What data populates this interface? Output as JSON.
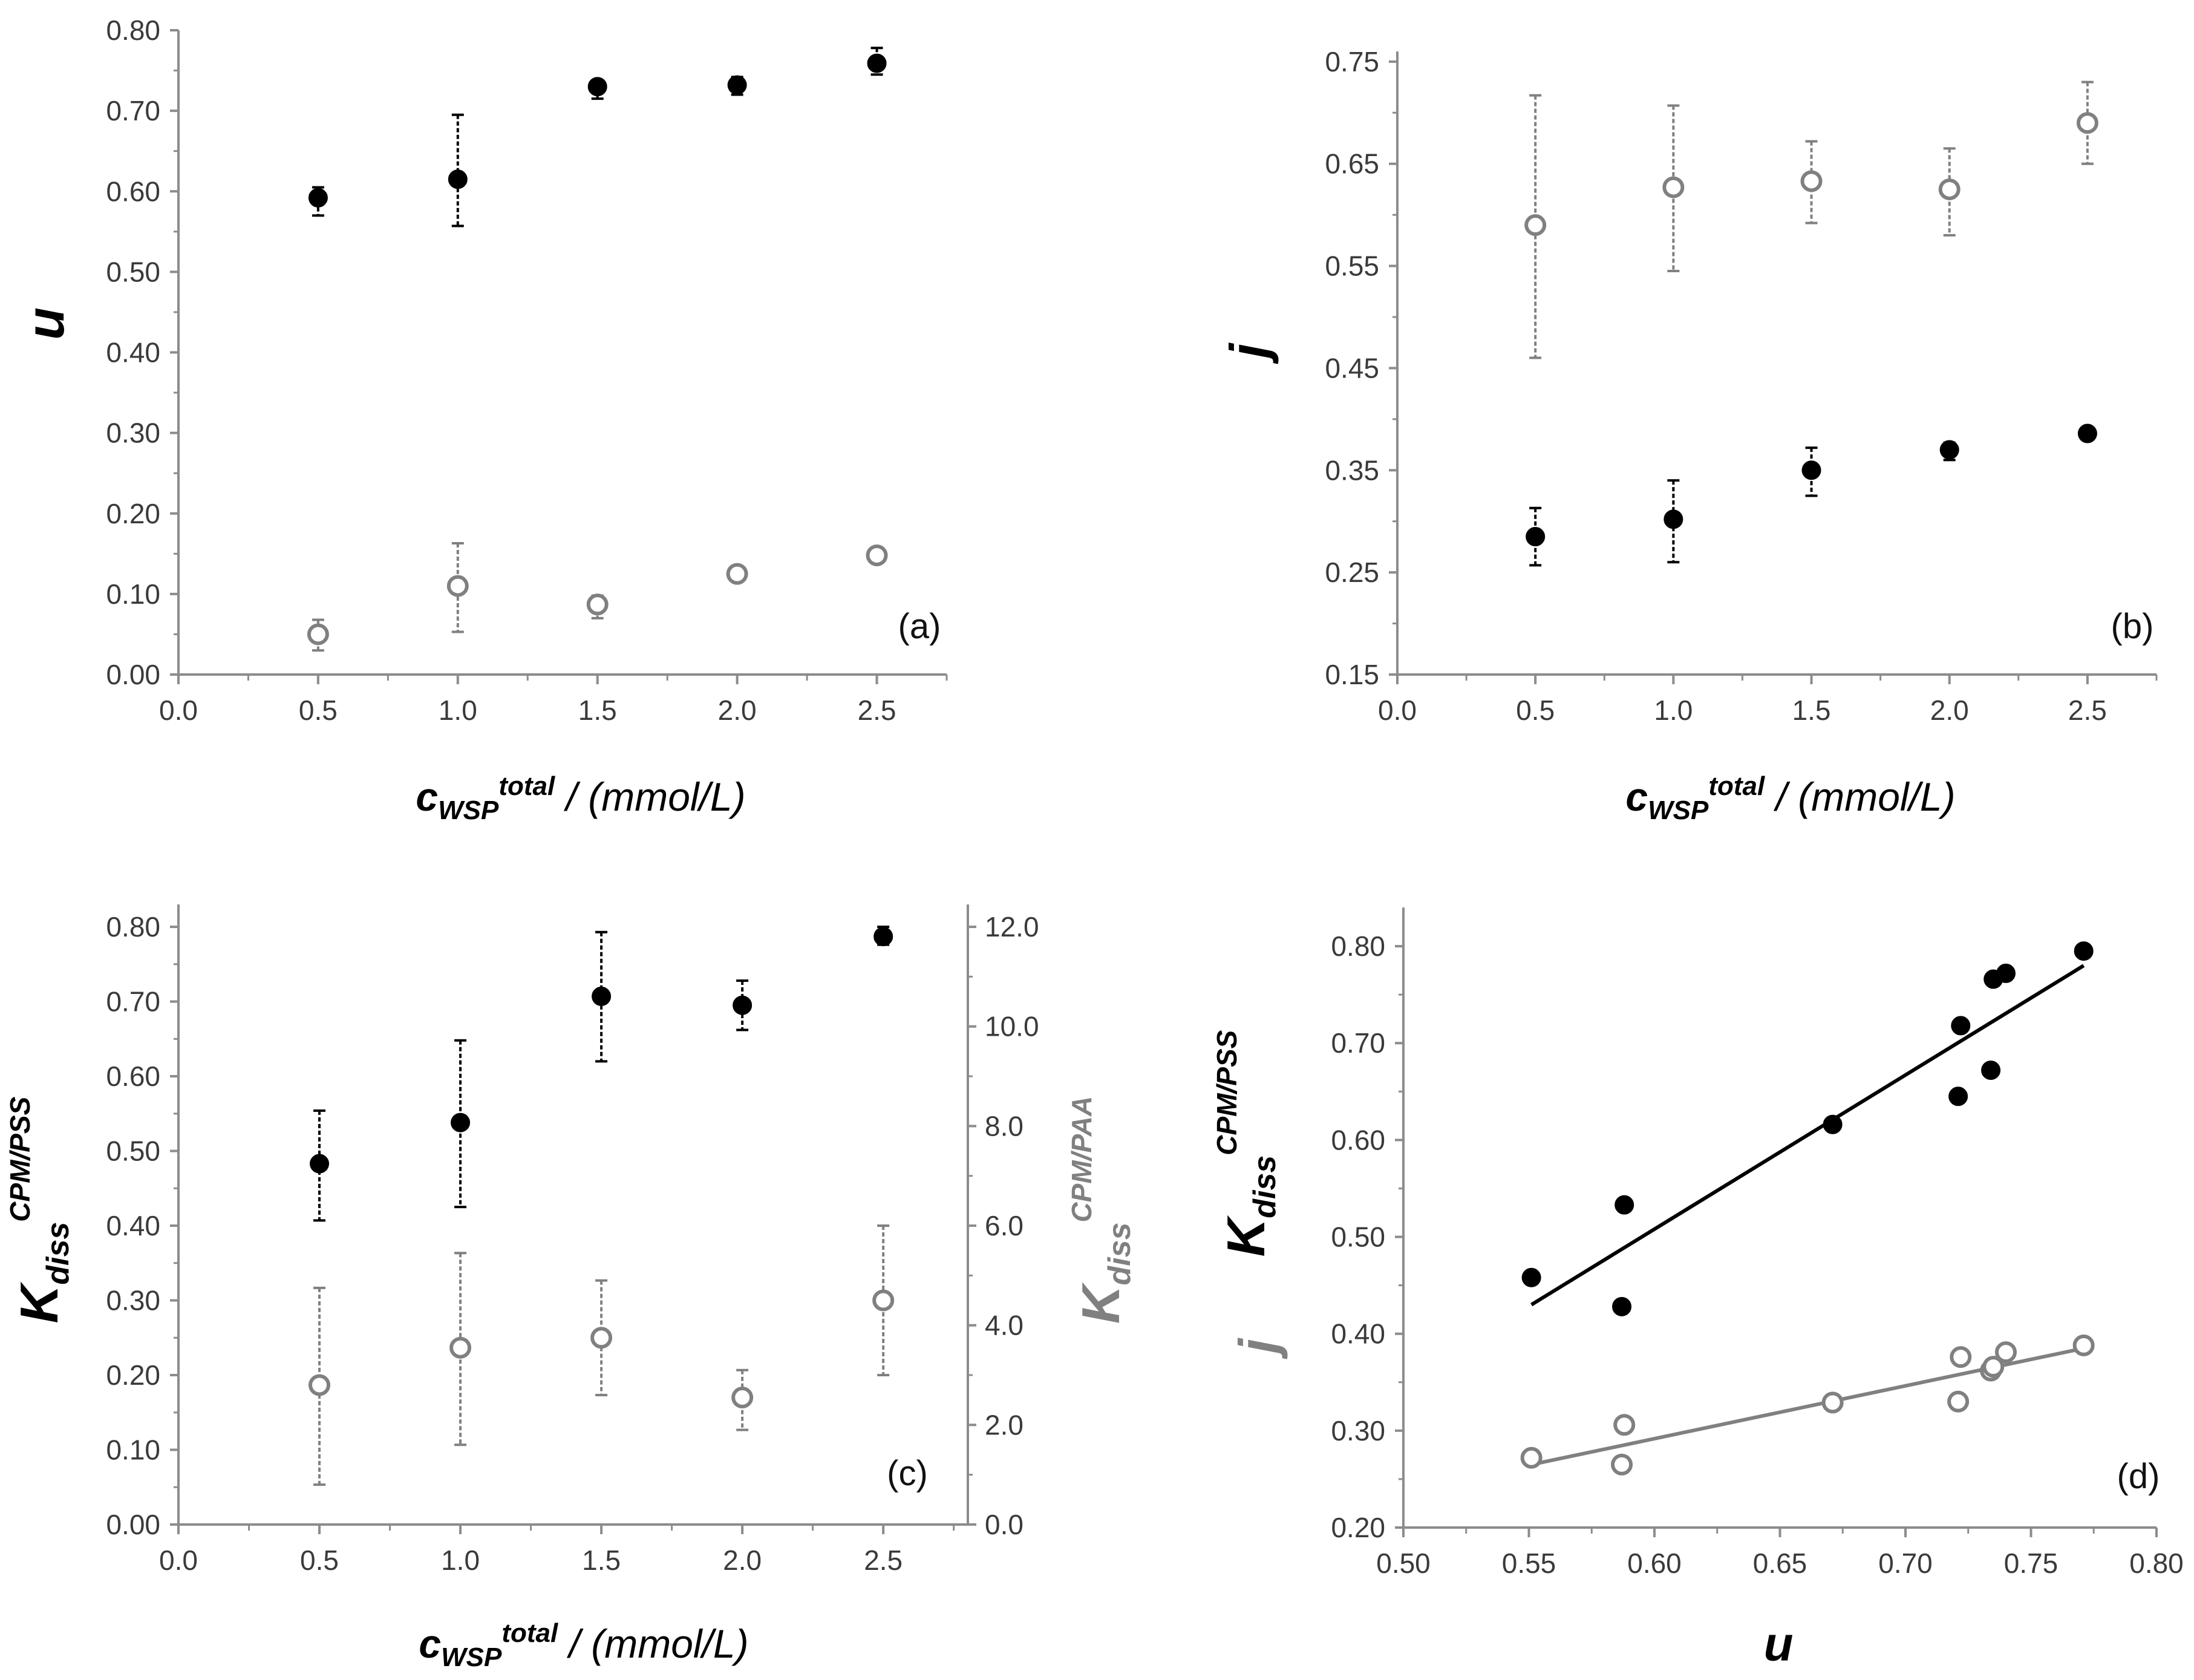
{
  "colors": {
    "black": "#000000",
    "gray": "#808080",
    "axis": "#8c8c8c"
  },
  "chart_data": [
    {
      "id": "a",
      "type": "scatter",
      "panel_label": "(a)",
      "title": "",
      "xlabel": {
        "main": "c",
        "sub": "WSP",
        "sup": "total",
        "unit": " / (mmol/L)"
      },
      "ylabel": {
        "main": "u"
      },
      "xlim": [
        0.0,
        2.75
      ],
      "ylim": [
        0.0,
        0.8
      ],
      "xticks": [
        "0.0",
        "0.5",
        "1.0",
        "1.5",
        "2.0",
        "2.5"
      ],
      "yticks": [
        "0.00",
        "0.10",
        "0.20",
        "0.30",
        "0.40",
        "0.50",
        "0.60",
        "0.70",
        "0.80"
      ],
      "series": [
        {
          "name": "filled",
          "marker": "filled",
          "color": "#000000",
          "x": [
            0.5,
            1.0,
            1.5,
            2.0,
            2.5
          ],
          "y": [
            0.592,
            0.615,
            0.73,
            0.732,
            0.759
          ],
          "err_low": [
            0.57,
            0.557,
            0.715,
            0.72,
            0.745
          ],
          "err_high": [
            0.605,
            0.695,
            0.738,
            0.742,
            0.778
          ]
        },
        {
          "name": "open",
          "marker": "open",
          "color": "#808080",
          "x": [
            0.5,
            1.0,
            1.5,
            2.0,
            2.5
          ],
          "y": [
            0.05,
            0.11,
            0.087,
            0.125,
            0.148
          ],
          "err_low": [
            0.03,
            0.053,
            0.07,
            0.118,
            0.14
          ],
          "err_high": [
            0.068,
            0.163,
            0.098,
            0.13,
            0.153
          ]
        }
      ]
    },
    {
      "id": "b",
      "type": "scatter",
      "panel_label": "(b)",
      "title": "",
      "xlabel": {
        "main": "c",
        "sub": "WSP",
        "sup": "total",
        "unit": " / (mmol/L)"
      },
      "ylabel": {
        "main": "j"
      },
      "xlim": [
        0.0,
        2.75
      ],
      "ylim": [
        0.15,
        0.76
      ],
      "xticks": [
        "0.0",
        "0.5",
        "1.0",
        "1.5",
        "2.0",
        "2.5"
      ],
      "yticks": [
        "0.15",
        "0.25",
        "0.35",
        "0.45",
        "0.55",
        "0.65",
        "0.75"
      ],
      "series": [
        {
          "name": "open",
          "marker": "open",
          "color": "#808080",
          "x": [
            0.5,
            1.0,
            1.5,
            2.0,
            2.5
          ],
          "y": [
            0.59,
            0.627,
            0.633,
            0.625,
            0.69
          ],
          "err_low": [
            0.46,
            0.545,
            0.592,
            0.58,
            0.65
          ],
          "err_high": [
            0.717,
            0.707,
            0.672,
            0.665,
            0.73
          ]
        },
        {
          "name": "filled",
          "marker": "filled",
          "color": "#000000",
          "x": [
            0.5,
            1.0,
            1.5,
            2.0,
            2.5
          ],
          "y": [
            0.285,
            0.302,
            0.35,
            0.37,
            0.386
          ],
          "err_low": [
            0.257,
            0.26,
            0.325,
            0.36,
            0.38
          ],
          "err_high": [
            0.313,
            0.34,
            0.372,
            0.377,
            0.39
          ]
        }
      ]
    },
    {
      "id": "c",
      "type": "scatter",
      "panel_label": "(c)",
      "title": "",
      "xlabel": {
        "main": "c",
        "sub": "WSP",
        "sup": "total",
        "unit": " / (mmol/L)"
      },
      "ylabel": {
        "main": "K",
        "sub": "diss",
        "sup": "CPM/PSS"
      },
      "y2label": {
        "main": "K",
        "sub": "diss",
        "sup": "CPM/PAA"
      },
      "xlim": [
        0.0,
        2.8
      ],
      "ylim": [
        0.0,
        0.83
      ],
      "y2lim": [
        0.0,
        12.45
      ],
      "xticks": [
        "0.0",
        "0.5",
        "1.0",
        "1.5",
        "2.0",
        "2.5"
      ],
      "yticks": [
        "0.00",
        "0.10",
        "0.20",
        "0.30",
        "0.40",
        "0.50",
        "0.60",
        "0.70",
        "0.80"
      ],
      "y2ticks": [
        "0.0",
        "2.0",
        "4.0",
        "6.0",
        "8.0",
        "10.0",
        "12.0"
      ],
      "series": [
        {
          "name": "filled",
          "axis": "left",
          "marker": "filled",
          "color": "#000000",
          "x": [
            0.5,
            1.0,
            1.5,
            2.0,
            2.5
          ],
          "y": [
            0.483,
            0.538,
            0.707,
            0.695,
            0.787
          ],
          "err_low": [
            0.407,
            0.425,
            0.62,
            0.662,
            0.776
          ],
          "err_high": [
            0.554,
            0.648,
            0.793,
            0.728,
            0.8
          ]
        },
        {
          "name": "open",
          "axis": "right",
          "marker": "open",
          "color": "#808080",
          "x": [
            0.5,
            1.0,
            1.5,
            2.0,
            2.5
          ],
          "y": [
            2.8,
            3.55,
            3.75,
            2.55,
            4.5
          ],
          "err_low": [
            0.8,
            1.6,
            2.6,
            1.9,
            3.0
          ],
          "err_high": [
            4.75,
            5.45,
            4.9,
            3.1,
            6.0
          ]
        }
      ]
    },
    {
      "id": "d",
      "type": "scatter",
      "panel_label": "(d)",
      "title": "",
      "xlabel": {
        "main": "u"
      },
      "ylabel": {
        "main": "K",
        "sub": "diss",
        "sup": "CPM/PSS"
      },
      "ylabel2": {
        "main": "j"
      },
      "xlim": [
        0.5,
        0.8
      ],
      "ylim": [
        0.2,
        0.84
      ],
      "xticks": [
        "0.50",
        "0.55",
        "0.60",
        "0.65",
        "0.70",
        "0.75",
        "0.80"
      ],
      "yticks": [
        "0.20",
        "0.30",
        "0.40",
        "0.50",
        "0.60",
        "0.70",
        "0.80"
      ],
      "series": [
        {
          "name": "filled",
          "marker": "filled",
          "color": "#000000",
          "x": [
            0.551,
            0.587,
            0.588,
            0.671,
            0.721,
            0.722,
            0.734,
            0.735,
            0.74,
            0.771
          ],
          "y": [
            0.458,
            0.428,
            0.533,
            0.616,
            0.645,
            0.718,
            0.672,
            0.766,
            0.772,
            0.795
          ],
          "fit": {
            "x": [
              0.551,
              0.771
            ],
            "y": [
              0.43,
              0.78
            ]
          }
        },
        {
          "name": "open",
          "marker": "open",
          "color": "#808080",
          "x": [
            0.551,
            0.587,
            0.588,
            0.671,
            0.721,
            0.722,
            0.734,
            0.735,
            0.74,
            0.771
          ],
          "y": [
            0.272,
            0.265,
            0.306,
            0.329,
            0.33,
            0.376,
            0.362,
            0.366,
            0.381,
            0.388
          ],
          "fit": {
            "x": [
              0.551,
              0.771
            ],
            "y": [
              0.265,
              0.385
            ]
          }
        }
      ]
    }
  ]
}
